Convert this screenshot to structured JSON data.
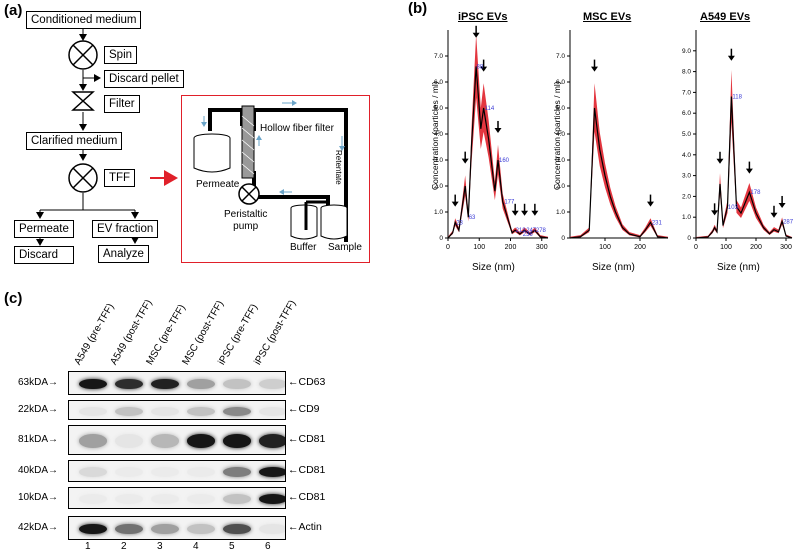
{
  "panel_labels": {
    "a": "(a)",
    "b": "(b)",
    "c": "(c)"
  },
  "flowchart": {
    "conditioned_medium": "Conditioned medium",
    "spin": "Spin",
    "discard_pellet": "Discard pellet",
    "filter": "Filter",
    "clarified_medium": "Clarified medium",
    "tff": "TFF",
    "permeate": "Permeate",
    "ev_fraction": "EV fraction",
    "discard": "Discard",
    "analyze": "Analyze"
  },
  "tff_diagram": {
    "hollow_fiber_filter": "Hollow fiber filter",
    "retentate": "Retentate",
    "permeate": "Permeate",
    "peristaltic_pump": "Peristaltic\npump",
    "buffer": "Buffer",
    "sample": "Sample",
    "accent_color": "#e0202a"
  },
  "chart_data": [
    {
      "type": "line",
      "title": "iPSC EVs",
      "ylabel": "Concentration (particles / ml)",
      "xlabel": "Size (nm)",
      "xlim": [
        0,
        320
      ],
      "ylim": [
        0,
        8
      ],
      "yticks": [
        "0",
        "1.0",
        "2.0",
        "3.0",
        "4.0",
        "5.0",
        "6.0",
        "7.0"
      ],
      "xticks": [
        "0",
        "100",
        "200",
        "300"
      ],
      "x": [
        0,
        15,
        23,
        35,
        55,
        65,
        75,
        90,
        105,
        114,
        130,
        150,
        160,
        175,
        190,
        205,
        215,
        230,
        245,
        262,
        278,
        295,
        320
      ],
      "y": [
        0,
        0.2,
        0.6,
        0.3,
        2.0,
        0.8,
        3.5,
        6.6,
        4.2,
        5.0,
        3.8,
        1.8,
        3.0,
        1.4,
        0.8,
        0.2,
        0.3,
        0.15,
        0.3,
        0.15,
        0.3,
        0.05,
        0
      ],
      "peak_labels": [
        "23",
        "63",
        "88",
        "114",
        "160",
        "177",
        "213",
        "236",
        "247",
        "278"
      ],
      "line_color": "#000000",
      "error_color": "#e0202a"
    },
    {
      "type": "line",
      "title": "MSC EVs",
      "ylabel": "Concentration (particles / ml)",
      "xlabel": "Size (nm)",
      "xlim": [
        0,
        280
      ],
      "ylim": [
        0,
        8
      ],
      "yticks": [
        "0",
        "1.0",
        "2.0",
        "3.0",
        "4.0",
        "5.0",
        "6.0",
        "7.0"
      ],
      "xticks": [
        "100",
        "200"
      ],
      "x": [
        0,
        30,
        55,
        70,
        85,
        100,
        115,
        130,
        150,
        170,
        200,
        215,
        230,
        250,
        280
      ],
      "y": [
        0,
        0.05,
        0.3,
        5.0,
        3.4,
        2.4,
        1.6,
        1.0,
        0.4,
        0.15,
        0.05,
        0.3,
        0.6,
        0.05,
        0
      ],
      "peak_labels": [
        "231"
      ],
      "line_color": "#000000",
      "error_color": "#e0202a"
    },
    {
      "type": "line",
      "title": "A549 EVs",
      "xlabel": "Size (nm)",
      "xlim": [
        0,
        320
      ],
      "ylim": [
        0,
        10
      ],
      "yticks": [
        "0",
        "1.0",
        "2.0",
        "3.0",
        "4.0",
        "5.0",
        "6.0",
        "7.0",
        "8.0",
        "9.0"
      ],
      "xticks": [
        "0",
        "100",
        "200",
        "300"
      ],
      "x": [
        0,
        40,
        55,
        62,
        70,
        80,
        90,
        105,
        118,
        135,
        150,
        178,
        200,
        225,
        245,
        260,
        275,
        287,
        300,
        320
      ],
      "y": [
        0,
        0.05,
        0.3,
        0.5,
        0.3,
        2.6,
        0.6,
        1.5,
        6.8,
        1.5,
        1.2,
        2.2,
        1.2,
        0.5,
        0.2,
        0.4,
        0.3,
        0.8,
        0.1,
        0
      ],
      "peak_labels": [
        "103",
        "118",
        "178",
        "287"
      ],
      "line_color": "#000000",
      "error_color": "#e0202a"
    }
  ],
  "western_blot": {
    "lanes": [
      {
        "label": "A549 (pre-TFF)",
        "number": "1"
      },
      {
        "label": "A549 (post-TFF)",
        "number": "2"
      },
      {
        "label": "MSC (pre-TFF)",
        "number": "3"
      },
      {
        "label": "MSC (post-TFF)",
        "number": "4"
      },
      {
        "label": "iPSC (pre-TFF)",
        "number": "5"
      },
      {
        "label": "iPSC (post-TFF)",
        "number": "6"
      }
    ],
    "rows": [
      {
        "kda": "63kDA",
        "protein": "CD63",
        "intensity": [
          0.95,
          0.85,
          0.9,
          0.35,
          0.2,
          0.15
        ]
      },
      {
        "kda": "22kDA",
        "protein": "CD9",
        "intensity": [
          0.05,
          0.2,
          0.05,
          0.2,
          0.45,
          0.05
        ]
      },
      {
        "kda": "81kDA",
        "protein": "CD81",
        "intensity": [
          0.35,
          0.05,
          0.25,
          0.95,
          0.95,
          0.9
        ]
      },
      {
        "kda": "40kDA",
        "protein": "CD81",
        "intensity": [
          0.1,
          0.02,
          0.02,
          0.02,
          0.5,
          0.95
        ]
      },
      {
        "kda": "10kDA",
        "protein": "CD81",
        "intensity": [
          0.02,
          0.02,
          0.02,
          0.02,
          0.2,
          0.95
        ]
      },
      {
        "kda": "42kDA",
        "protein": "Actin",
        "intensity": [
          0.95,
          0.55,
          0.35,
          0.2,
          0.7,
          0.05
        ]
      }
    ]
  }
}
